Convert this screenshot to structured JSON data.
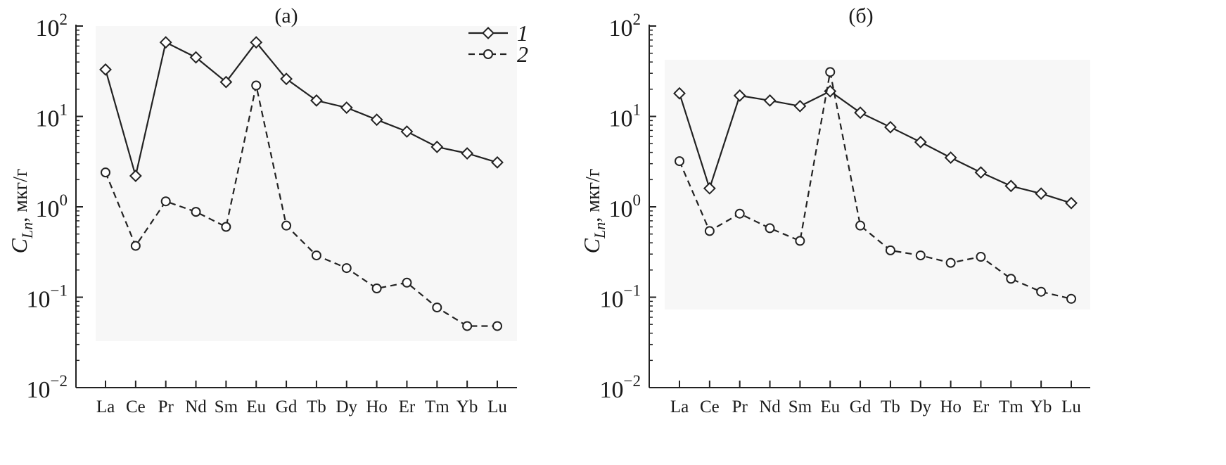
{
  "chart_data": [
    {
      "type": "line",
      "title": "(а)",
      "ylabel_main": "C",
      "ylabel_sub": "Ln",
      "ylabel_unit": ", мкг/г",
      "yscale": "log",
      "ylim": [
        0.01,
        100
      ],
      "yticks": [
        {
          "base": "10",
          "exp": "2"
        },
        {
          "base": "10",
          "exp": "1"
        },
        {
          "base": "10",
          "exp": "0"
        },
        {
          "base": "10",
          "exp": "−1"
        },
        {
          "base": "10",
          "exp": "−2"
        }
      ],
      "categories": [
        "La",
        "Ce",
        "Pr",
        "Nd",
        "Sm",
        "Eu",
        "Gd",
        "Tb",
        "Dy",
        "Ho",
        "Er",
        "Tm",
        "Yb",
        "Lu"
      ],
      "legend": {
        "position": "top-right",
        "show": true
      },
      "series": [
        {
          "name": "1",
          "marker": "diamond",
          "line": "solid",
          "values": [
            33,
            2.2,
            66,
            45,
            24,
            66,
            26,
            15,
            12.5,
            9.2,
            6.8,
            4.6,
            3.9,
            3.1
          ]
        },
        {
          "name": "2",
          "marker": "circle",
          "line": "dashed",
          "values": [
            2.4,
            0.37,
            1.15,
            0.88,
            0.6,
            22,
            0.62,
            0.29,
            0.21,
            0.125,
            0.145,
            0.077,
            0.048,
            0.048
          ]
        }
      ]
    },
    {
      "type": "line",
      "title": "(б)",
      "ylabel_main": "C",
      "ylabel_sub": "Ln",
      "ylabel_unit": ", мкг/г",
      "yscale": "log",
      "ylim": [
        0.01,
        100
      ],
      "yticks": [
        {
          "base": "10",
          "exp": "2"
        },
        {
          "base": "10",
          "exp": "1"
        },
        {
          "base": "10",
          "exp": "0"
        },
        {
          "base": "10",
          "exp": "−1"
        },
        {
          "base": "10",
          "exp": "−2"
        }
      ],
      "categories": [
        "La",
        "Ce",
        "Pr",
        "Nd",
        "Sm",
        "Eu",
        "Gd",
        "Tb",
        "Dy",
        "Ho",
        "Er",
        "Tm",
        "Yb",
        "Lu"
      ],
      "legend": {
        "show": false
      },
      "series": [
        {
          "name": "1",
          "marker": "diamond",
          "line": "solid",
          "values": [
            18,
            1.6,
            17,
            15,
            13,
            19,
            11,
            7.6,
            5.2,
            3.5,
            2.4,
            1.7,
            1.4,
            1.1
          ]
        },
        {
          "name": "2",
          "marker": "circle",
          "line": "dashed",
          "values": [
            3.2,
            0.54,
            0.84,
            0.58,
            0.42,
            31,
            0.62,
            0.33,
            0.29,
            0.24,
            0.28,
            0.16,
            0.115,
            0.096
          ]
        }
      ]
    }
  ]
}
